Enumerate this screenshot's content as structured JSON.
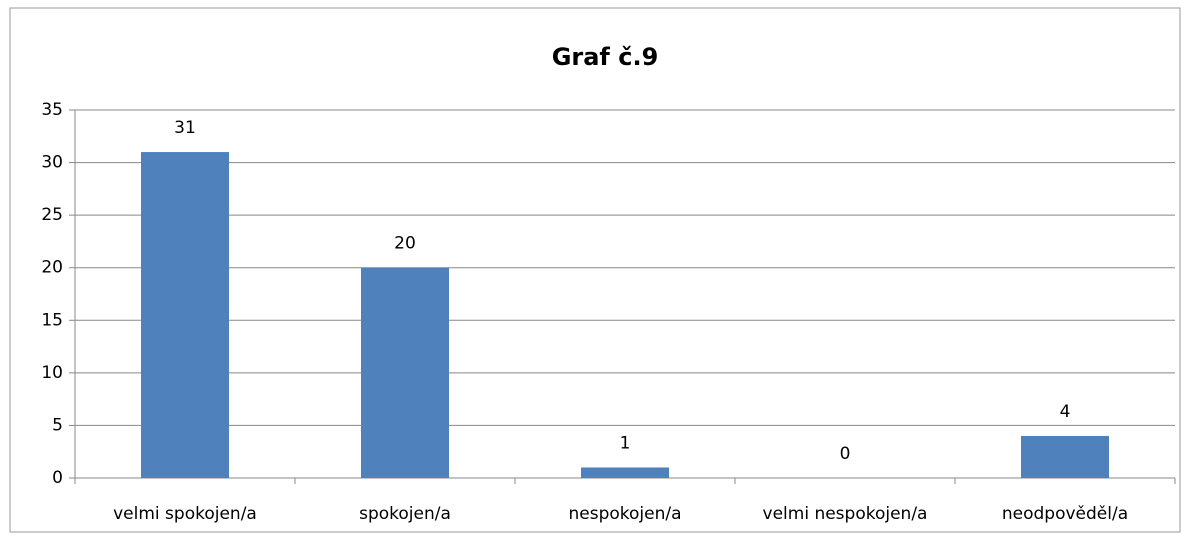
{
  "chart_data": {
    "type": "bar",
    "title": "Graf č.9",
    "categories": [
      "velmi spokojen/a",
      "spokojen/a",
      "nespokojen/a",
      "velmi nespokojen/a",
      "neodpověděl/a"
    ],
    "values": [
      31,
      20,
      1,
      0,
      4
    ],
    "color": "#4f81bd",
    "ylim": [
      0,
      35
    ],
    "yticks": [
      0,
      5,
      10,
      15,
      20,
      25,
      30,
      35
    ],
    "grid": true,
    "data_labels": true
  }
}
